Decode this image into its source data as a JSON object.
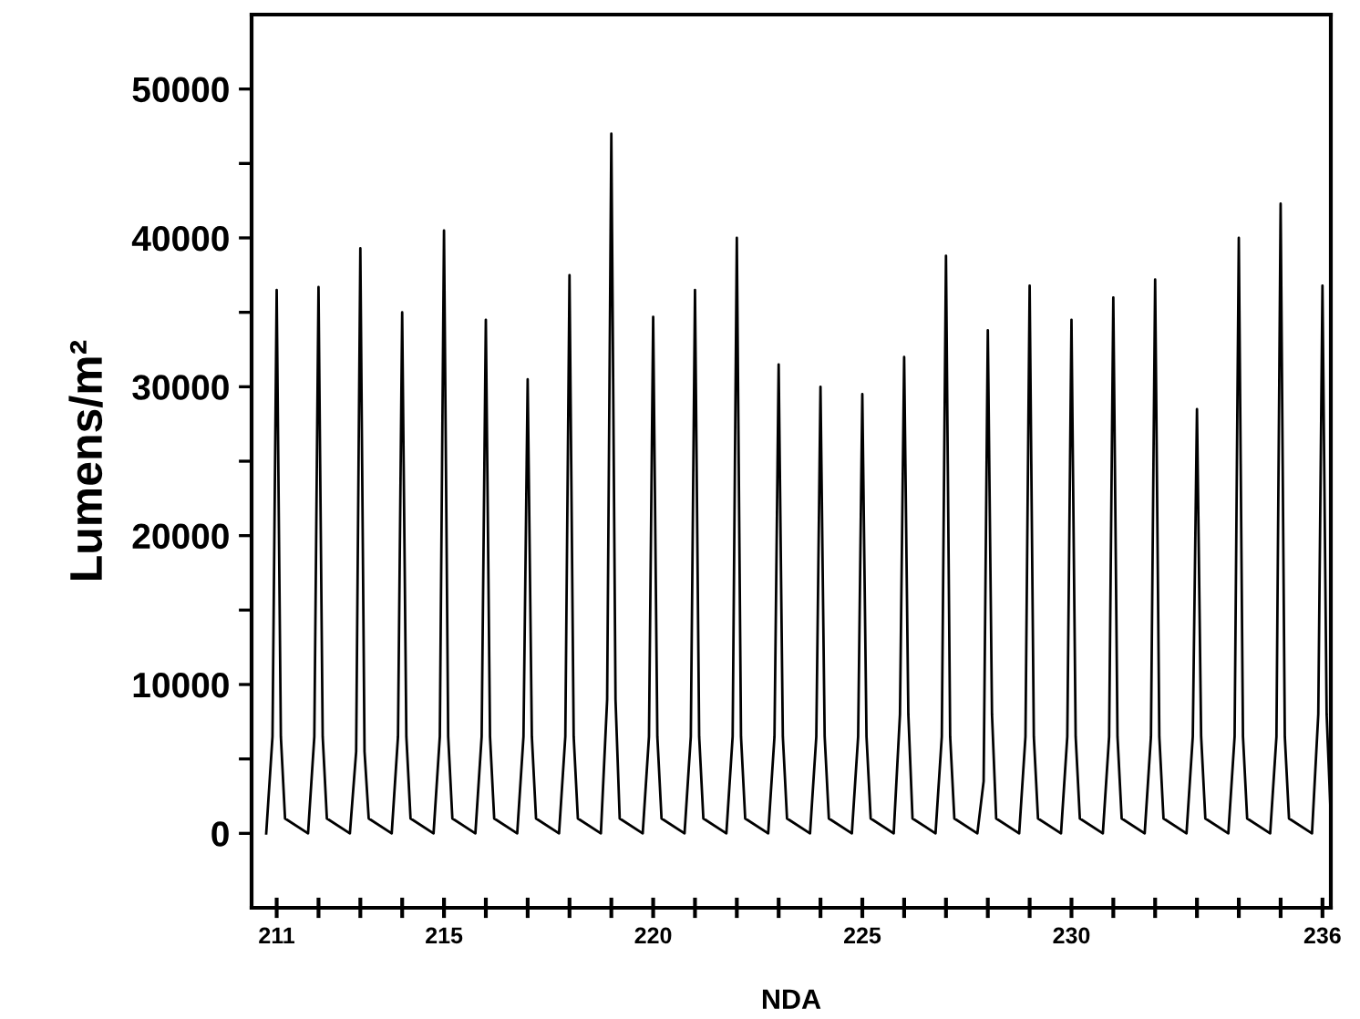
{
  "chart_data": {
    "type": "line",
    "xlabel": "NDA",
    "ylabel": "Lumens/m²",
    "xlim": [
      210.4,
      236.2
    ],
    "ylim": [
      -5000,
      55000
    ],
    "xticks": [
      {
        "value": 211,
        "label": "211"
      },
      {
        "value": 212,
        "label": null
      },
      {
        "value": 213,
        "label": null
      },
      {
        "value": 214,
        "label": null
      },
      {
        "value": 215,
        "label": "215"
      },
      {
        "value": 216,
        "label": null
      },
      {
        "value": 217,
        "label": null
      },
      {
        "value": 218,
        "label": null
      },
      {
        "value": 219,
        "label": null
      },
      {
        "value": 220,
        "label": "220"
      },
      {
        "value": 221,
        "label": null
      },
      {
        "value": 222,
        "label": null
      },
      {
        "value": 223,
        "label": null
      },
      {
        "value": 224,
        "label": null
      },
      {
        "value": 225,
        "label": "225"
      },
      {
        "value": 226,
        "label": null
      },
      {
        "value": 227,
        "label": null
      },
      {
        "value": 228,
        "label": null
      },
      {
        "value": 229,
        "label": null
      },
      {
        "value": 230,
        "label": "230"
      },
      {
        "value": 231,
        "label": null
      },
      {
        "value": 232,
        "label": null
      },
      {
        "value": 233,
        "label": null
      },
      {
        "value": 234,
        "label": null
      },
      {
        "value": 235,
        "label": null
      },
      {
        "value": 236,
        "label": "236"
      }
    ],
    "yticks": [
      0,
      {
        "value": 5000,
        "label": null
      },
      10000,
      {
        "value": 15000,
        "label": null
      },
      20000,
      {
        "value": 25000,
        "label": null
      },
      30000,
      {
        "value": 35000,
        "label": null
      },
      40000,
      {
        "value": 45000,
        "label": null
      },
      50000
    ],
    "grid": false,
    "legend": false,
    "marker": "none",
    "line_style": "solid",
    "series": [
      {
        "color": "#000000",
        "x": [
          210.75,
          210.9,
          211,
          211.1,
          211.2,
          211.75,
          211.9,
          212,
          212.1,
          212.2,
          212.75,
          212.9,
          213,
          213.1,
          213.2,
          213.75,
          213.9,
          214,
          214.1,
          214.2,
          214.75,
          214.9,
          215,
          215.1,
          215.2,
          215.75,
          215.9,
          216,
          216.1,
          216.2,
          216.75,
          216.9,
          217,
          217.1,
          217.2,
          217.75,
          217.9,
          218,
          218.1,
          218.2,
          218.75,
          218.9,
          219,
          219.1,
          219.2,
          219.75,
          219.9,
          220,
          220.1,
          220.2,
          220.75,
          220.9,
          221,
          221.1,
          221.2,
          221.75,
          221.9,
          222,
          222.1,
          222.2,
          222.75,
          222.9,
          223,
          223.1,
          223.2,
          223.75,
          223.9,
          224,
          224.1,
          224.2,
          224.75,
          224.9,
          225,
          225.1,
          225.2,
          225.75,
          225.9,
          226,
          226.1,
          226.2,
          226.75,
          226.9,
          227,
          227.1,
          227.2,
          227.75,
          227.9,
          228,
          228.1,
          228.2,
          228.75,
          228.9,
          229,
          229.1,
          229.2,
          229.75,
          229.9,
          230,
          230.1,
          230.2,
          230.75,
          230.9,
          231,
          231.1,
          231.2,
          231.75,
          231.9,
          232,
          232.1,
          232.2,
          232.75,
          232.9,
          233,
          233.1,
          233.2,
          233.75,
          233.9,
          234,
          234.1,
          234.2,
          234.75,
          234.9,
          235,
          235.1,
          235.2,
          235.75,
          235.9,
          236,
          236.1,
          236.2
        ],
        "values": [
          0,
          6500,
          36500,
          6500,
          1000,
          0,
          6500,
          36700,
          6500,
          1000,
          0,
          5500,
          39300,
          5500,
          1000,
          0,
          6500,
          35000,
          6500,
          1000,
          0,
          6500,
          40500,
          6500,
          1000,
          0,
          6500,
          34500,
          6500,
          1000,
          0,
          6500,
          30500,
          6500,
          1000,
          0,
          6500,
          37500,
          6500,
          1000,
          0,
          9000,
          47000,
          9000,
          1000,
          0,
          6500,
          34700,
          6500,
          1000,
          0,
          6500,
          36500,
          6500,
          1000,
          0,
          6500,
          40000,
          6500,
          1000,
          0,
          6500,
          31500,
          6500,
          1000,
          0,
          6500,
          30000,
          6500,
          1000,
          0,
          6500,
          29500,
          6500,
          1000,
          0,
          8000,
          32000,
          8000,
          1000,
          0,
          6500,
          38800,
          6500,
          1000,
          0,
          3500,
          33800,
          8000,
          1000,
          0,
          6500,
          36800,
          6500,
          1000,
          0,
          6500,
          34500,
          6500,
          1000,
          0,
          6500,
          36000,
          6500,
          1000,
          0,
          6500,
          37200,
          6500,
          1000,
          0,
          6500,
          28500,
          6500,
          1000,
          0,
          6500,
          40000,
          6500,
          1000,
          0,
          6500,
          42300,
          6500,
          1000,
          0,
          8000,
          36800,
          8000,
          1000
        ]
      }
    ]
  }
}
